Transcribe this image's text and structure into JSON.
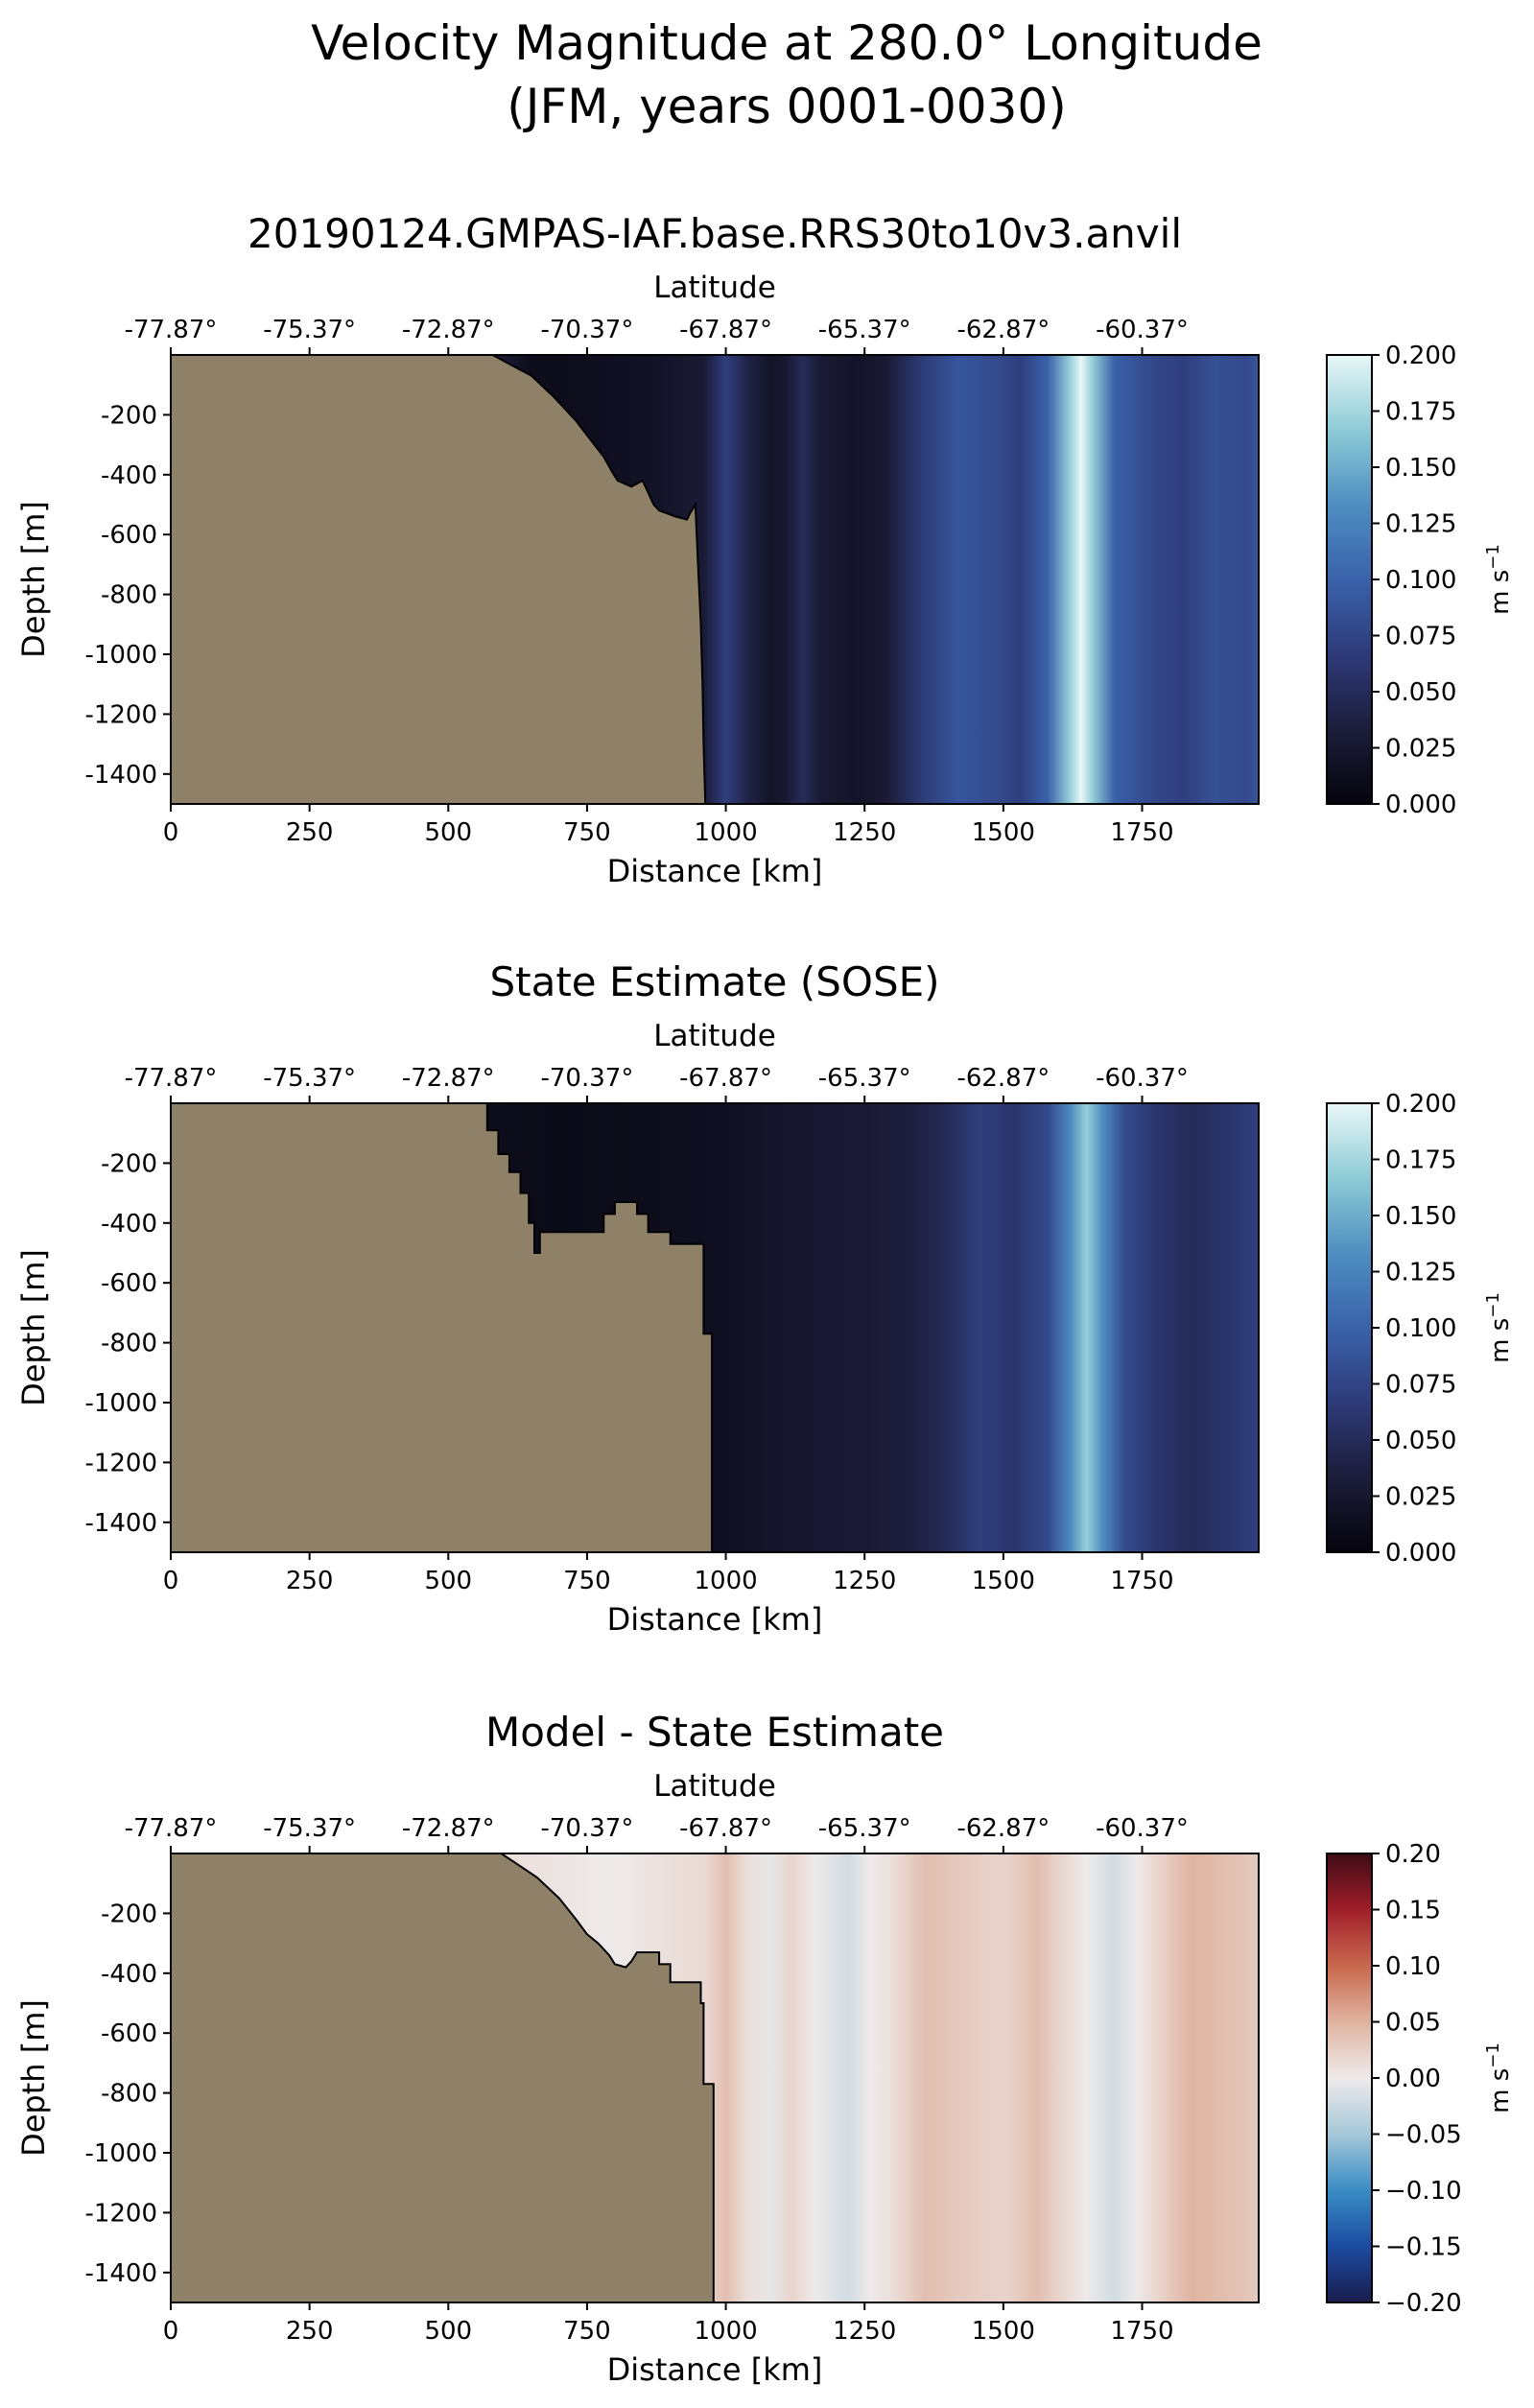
{
  "figure": {
    "suptitle_line1": "Velocity Magnitude at 280.0° Longitude",
    "suptitle_line2": "(JFM, years 0001-0030)"
  },
  "colors": {
    "land": "#8f8168",
    "cmap_speed": [
      "#05040c",
      "#1c1d3a",
      "#2e3a78",
      "#3a62aa",
      "#4e8ec0",
      "#8ecbd6",
      "#e9f7f7"
    ],
    "cmap_diff": [
      "#1a1c4e",
      "#1c4ba0",
      "#3a8cc4",
      "#a6c8d8",
      "#eeeaea",
      "#dfb3a0",
      "#c8684e",
      "#a01e2a",
      "#3e0b16"
    ]
  },
  "chart_data": [
    {
      "type": "heatmap",
      "title": "20190124.GMPAS-IAF.base.RRS30to10v3.anvil",
      "xlabel": "Distance [km]",
      "ylabel": "Depth [m]",
      "x2label": "Latitude",
      "xlim": [
        0,
        1960
      ],
      "ylim": [
        -1500,
        0
      ],
      "x_ticks": [
        0,
        250,
        500,
        750,
        1000,
        1250,
        1500,
        1750
      ],
      "y_ticks": [
        -200,
        -400,
        -600,
        -800,
        -1000,
        -1200,
        -1400
      ],
      "lat_ticks": [
        "-77.87°",
        "-75.37°",
        "-72.87°",
        "-70.37°",
        "-67.87°",
        "-65.37°",
        "-62.87°",
        "-60.37°"
      ],
      "colorbar": {
        "label": "m s",
        "label_sup": "−1",
        "range": [
          0.0,
          0.2
        ],
        "ticks": [
          "0.000",
          "0.025",
          "0.050",
          "0.075",
          "0.100",
          "0.125",
          "0.150",
          "0.175",
          "0.200"
        ]
      },
      "cmap": "speed",
      "value_profile": [
        [
          600,
          0.03
        ],
        [
          650,
          0.01
        ],
        [
          700,
          0.01
        ],
        [
          800,
          0.015
        ],
        [
          880,
          0.02
        ],
        [
          960,
          0.03
        ],
        [
          1000,
          0.07
        ],
        [
          1040,
          0.04
        ],
        [
          1080,
          0.02
        ],
        [
          1110,
          0.03
        ],
        [
          1140,
          0.05
        ],
        [
          1170,
          0.03
        ],
        [
          1230,
          0.02
        ],
        [
          1290,
          0.03
        ],
        [
          1360,
          0.07
        ],
        [
          1420,
          0.09
        ],
        [
          1490,
          0.08
        ],
        [
          1530,
          0.07
        ],
        [
          1580,
          0.1
        ],
        [
          1620,
          0.17
        ],
        [
          1640,
          0.2
        ],
        [
          1660,
          0.17
        ],
        [
          1700,
          0.1
        ],
        [
          1760,
          0.08
        ],
        [
          1820,
          0.07
        ],
        [
          1880,
          0.085
        ],
        [
          1940,
          0.08
        ],
        [
          1960,
          0.09
        ]
      ],
      "land_boundary": [
        [
          0,
          0
        ],
        [
          580,
          0
        ],
        [
          610,
          -30
        ],
        [
          650,
          -70
        ],
        [
          690,
          -140
        ],
        [
          730,
          -220
        ],
        [
          755,
          -280
        ],
        [
          780,
          -340
        ],
        [
          795,
          -390
        ],
        [
          805,
          -420
        ],
        [
          830,
          -440
        ],
        [
          850,
          -420
        ],
        [
          860,
          -460
        ],
        [
          870,
          -500
        ],
        [
          880,
          -520
        ],
        [
          910,
          -540
        ],
        [
          930,
          -550
        ],
        [
          935,
          -530
        ],
        [
          945,
          -500
        ],
        [
          950,
          -700
        ],
        [
          955,
          -900
        ],
        [
          958,
          -1100
        ],
        [
          960,
          -1300
        ],
        [
          963,
          -1500
        ],
        [
          0,
          -1500
        ]
      ]
    },
    {
      "type": "heatmap",
      "title": "State Estimate (SOSE)",
      "xlabel": "Distance [km]",
      "ylabel": "Depth [m]",
      "x2label": "Latitude",
      "xlim": [
        0,
        1960
      ],
      "ylim": [
        -1500,
        0
      ],
      "x_ticks": [
        0,
        250,
        500,
        750,
        1000,
        1250,
        1500,
        1750
      ],
      "y_ticks": [
        -200,
        -400,
        -600,
        -800,
        -1000,
        -1200,
        -1400
      ],
      "lat_ticks": [
        "-77.87°",
        "-75.37°",
        "-72.87°",
        "-70.37°",
        "-67.87°",
        "-65.37°",
        "-62.87°",
        "-60.37°"
      ],
      "colorbar": {
        "label": "m s",
        "label_sup": "−1",
        "range": [
          0.0,
          0.2
        ],
        "ticks": [
          "0.000",
          "0.025",
          "0.050",
          "0.075",
          "0.100",
          "0.125",
          "0.150",
          "0.175",
          "0.200"
        ]
      },
      "cmap": "speed",
      "value_profile": [
        [
          580,
          0.01
        ],
        [
          700,
          0.008
        ],
        [
          850,
          0.01
        ],
        [
          980,
          0.015
        ],
        [
          1050,
          0.02
        ],
        [
          1150,
          0.025
        ],
        [
          1250,
          0.03
        ],
        [
          1330,
          0.035
        ],
        [
          1400,
          0.05
        ],
        [
          1460,
          0.07
        ],
        [
          1520,
          0.06
        ],
        [
          1580,
          0.08
        ],
        [
          1620,
          0.13
        ],
        [
          1650,
          0.17
        ],
        [
          1680,
          0.13
        ],
        [
          1720,
          0.08
        ],
        [
          1780,
          0.06
        ],
        [
          1840,
          0.05
        ],
        [
          1900,
          0.06
        ],
        [
          1960,
          0.07
        ]
      ],
      "land_boundary": [
        [
          0,
          0
        ],
        [
          570,
          0
        ],
        [
          570,
          -90
        ],
        [
          590,
          -90
        ],
        [
          590,
          -170
        ],
        [
          610,
          -170
        ],
        [
          610,
          -230
        ],
        [
          630,
          -230
        ],
        [
          630,
          -300
        ],
        [
          645,
          -300
        ],
        [
          645,
          -400
        ],
        [
          655,
          -400
        ],
        [
          655,
          -500
        ],
        [
          665,
          -500
        ],
        [
          665,
          -430
        ],
        [
          780,
          -430
        ],
        [
          780,
          -370
        ],
        [
          800,
          -370
        ],
        [
          800,
          -330
        ],
        [
          840,
          -330
        ],
        [
          840,
          -370
        ],
        [
          860,
          -370
        ],
        [
          860,
          -430
        ],
        [
          900,
          -430
        ],
        [
          900,
          -470
        ],
        [
          960,
          -470
        ],
        [
          960,
          -770
        ],
        [
          975,
          -770
        ],
        [
          975,
          -1500
        ],
        [
          0,
          -1500
        ]
      ]
    },
    {
      "type": "heatmap",
      "title": "Model - State Estimate",
      "xlabel": "Distance [km]",
      "ylabel": "Depth [m]",
      "x2label": "Latitude",
      "xlim": [
        0,
        1960
      ],
      "ylim": [
        -1500,
        0
      ],
      "x_ticks": [
        0,
        250,
        500,
        750,
        1000,
        1250,
        1500,
        1750
      ],
      "y_ticks": [
        -200,
        -400,
        -600,
        -800,
        -1000,
        -1200,
        -1400
      ],
      "lat_ticks": [
        "-77.87°",
        "-75.37°",
        "-72.87°",
        "-70.37°",
        "-67.87°",
        "-65.37°",
        "-62.87°",
        "-60.37°"
      ],
      "colorbar": {
        "label": "m s",
        "label_sup": "−1",
        "range": [
          -0.2,
          0.2
        ],
        "ticks": [
          "−0.20",
          "−0.15",
          "−0.10",
          "−0.05",
          "0.00",
          "0.05",
          "0.10",
          "0.15",
          "0.20"
        ]
      },
      "cmap": "diff",
      "value_profile": [
        [
          600,
          0.01
        ],
        [
          700,
          0.005
        ],
        [
          800,
          0.0
        ],
        [
          900,
          0.01
        ],
        [
          960,
          0.015
        ],
        [
          1000,
          0.04
        ],
        [
          1040,
          0.01
        ],
        [
          1080,
          -0.005
        ],
        [
          1120,
          0.02
        ],
        [
          1160,
          0.0
        ],
        [
          1220,
          -0.02
        ],
        [
          1260,
          0.0
        ],
        [
          1300,
          0.01
        ],
        [
          1360,
          0.04
        ],
        [
          1420,
          0.03
        ],
        [
          1500,
          0.02
        ],
        [
          1560,
          0.04
        ],
        [
          1600,
          0.02
        ],
        [
          1650,
          0.0
        ],
        [
          1700,
          -0.02
        ],
        [
          1740,
          0.0
        ],
        [
          1780,
          0.02
        ],
        [
          1840,
          0.05
        ],
        [
          1900,
          0.04
        ],
        [
          1960,
          0.03
        ]
      ],
      "land_boundary": [
        [
          0,
          0
        ],
        [
          595,
          0
        ],
        [
          620,
          -30
        ],
        [
          660,
          -80
        ],
        [
          700,
          -150
        ],
        [
          730,
          -220
        ],
        [
          750,
          -270
        ],
        [
          770,
          -300
        ],
        [
          790,
          -340
        ],
        [
          800,
          -370
        ],
        [
          820,
          -380
        ],
        [
          830,
          -360
        ],
        [
          840,
          -330
        ],
        [
          880,
          -330
        ],
        [
          880,
          -370
        ],
        [
          900,
          -370
        ],
        [
          900,
          -430
        ],
        [
          955,
          -430
        ],
        [
          955,
          -500
        ],
        [
          960,
          -500
        ],
        [
          960,
          -770
        ],
        [
          978,
          -770
        ],
        [
          978,
          -1500
        ],
        [
          0,
          -1500
        ]
      ]
    }
  ]
}
